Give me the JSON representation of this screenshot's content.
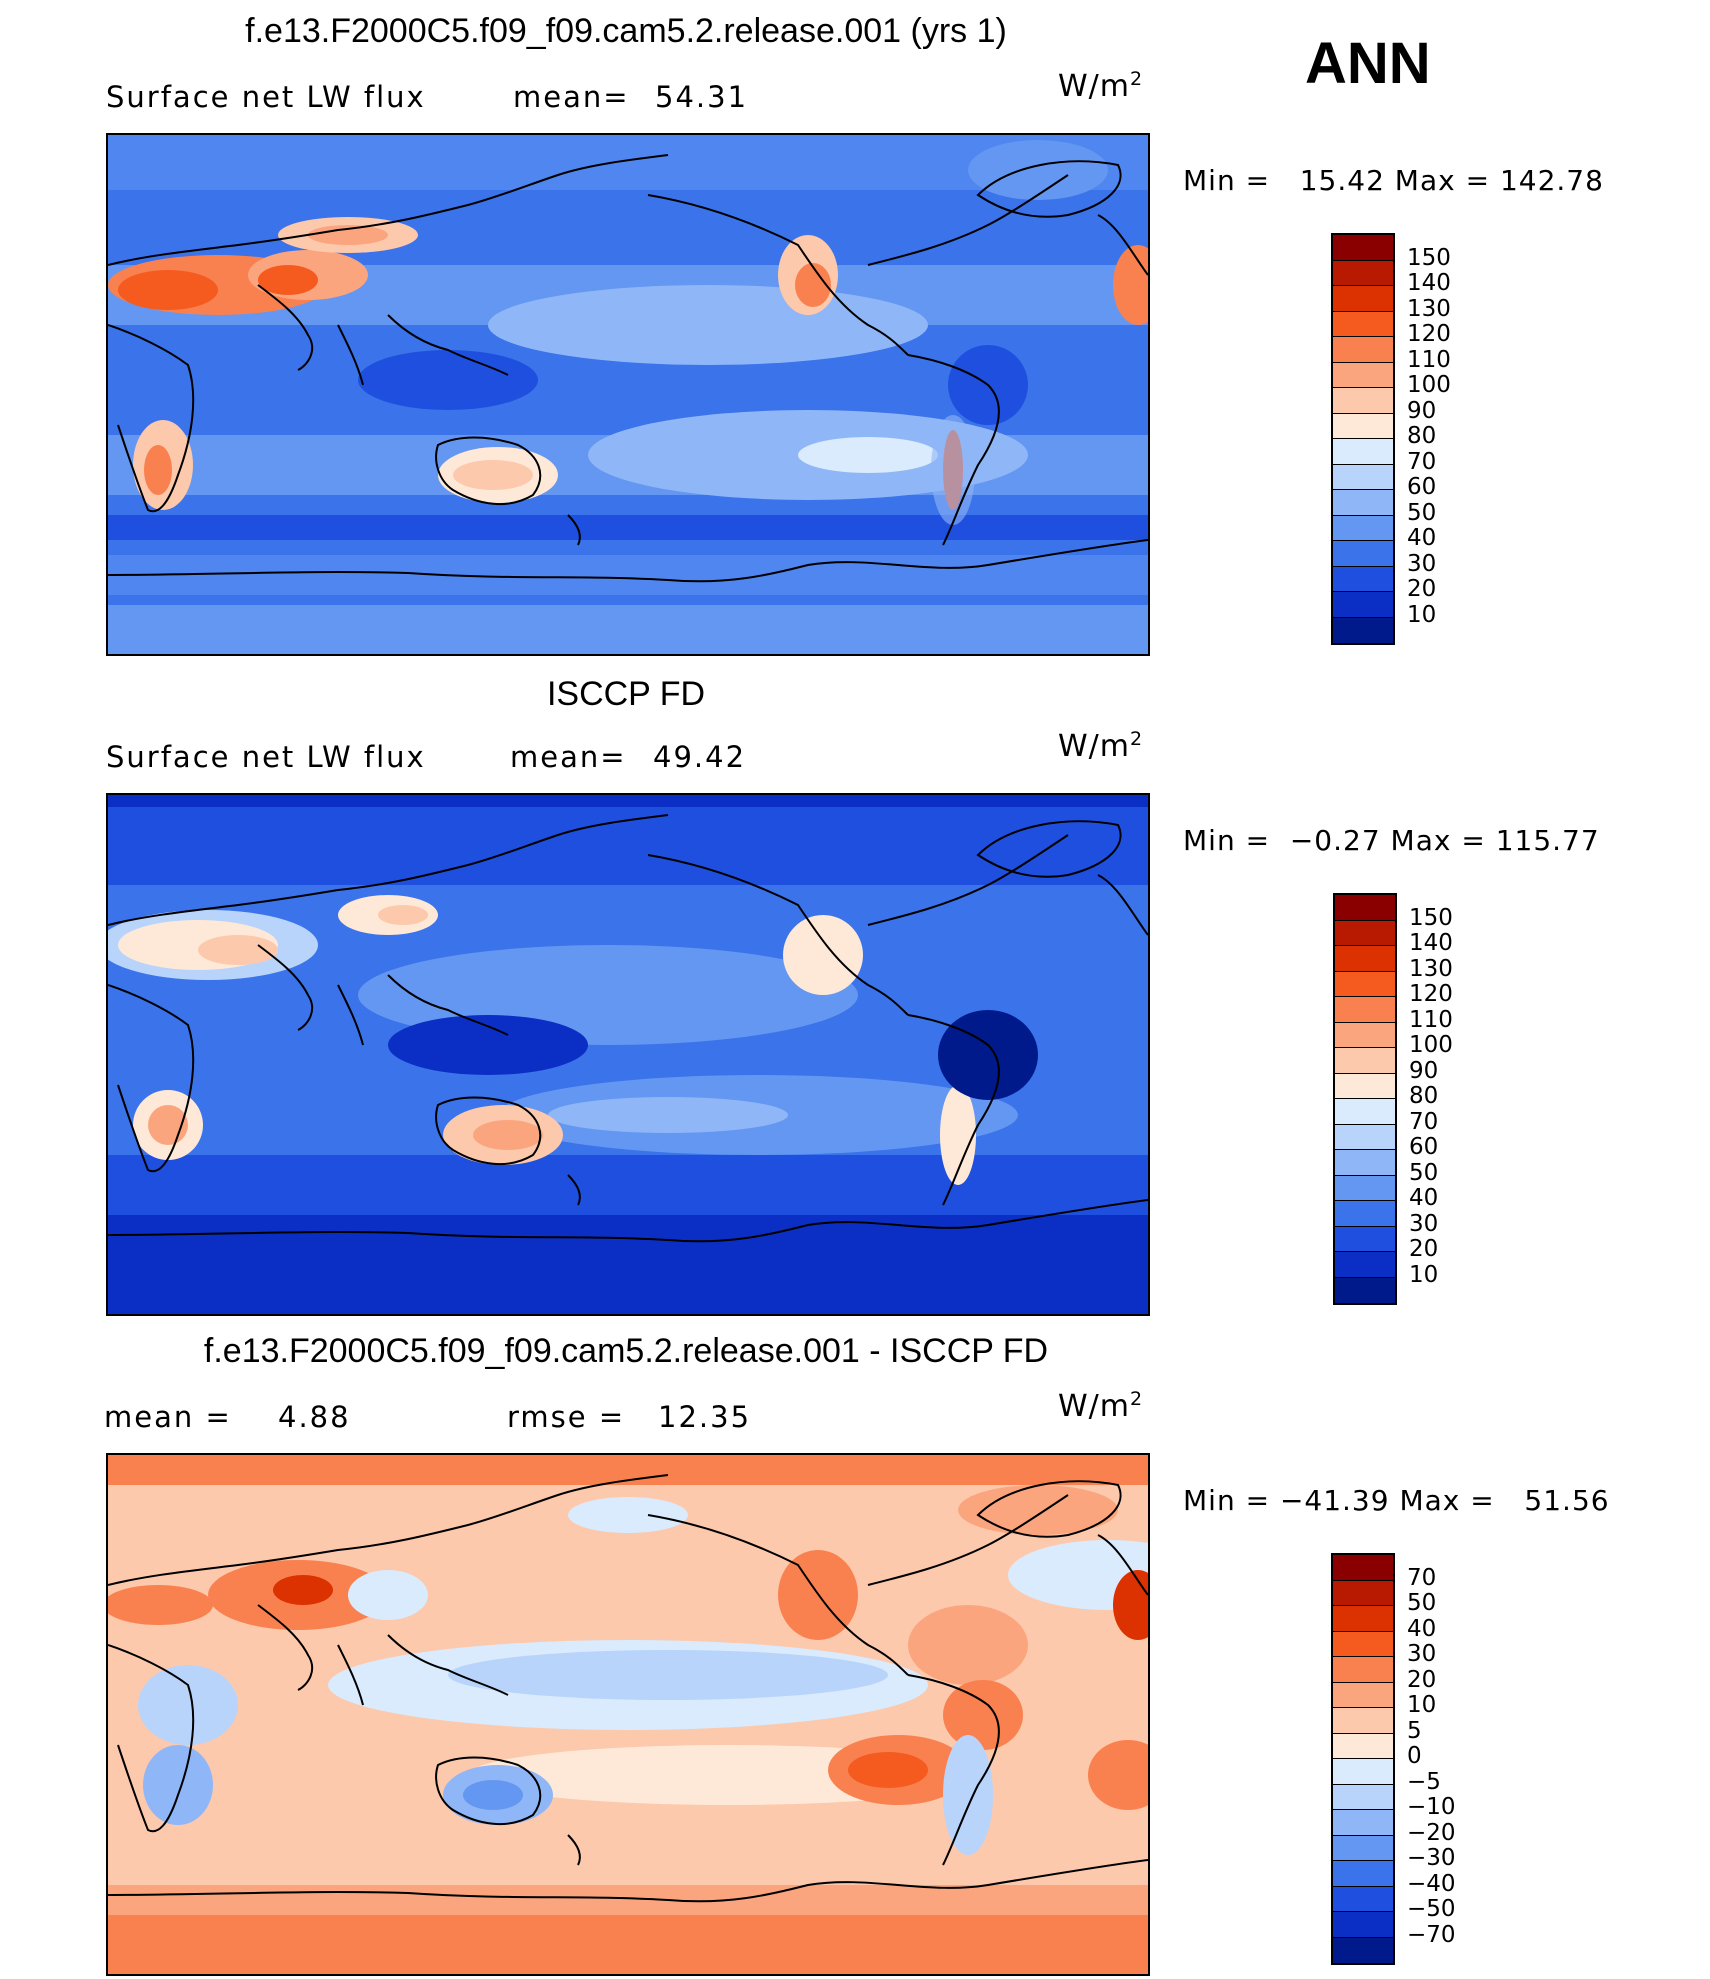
{
  "season": "ANN",
  "units_base": "W/m",
  "units_exp": "2",
  "panels": [
    {
      "title": "f.e13.F2000C5.f09_f09.cam5.2.release.001 (yrs 1)",
      "left_label": "Surface net LW flux",
      "mid_label": "mean=",
      "mid_value": "54.31",
      "minmax": "Min =   15.42 Max = 142.78",
      "colorbar": {
        "labels": [
          "150",
          "140",
          "130",
          "120",
          "110",
          "100",
          "90",
          "80",
          "70",
          "60",
          "50",
          "40",
          "30",
          "20",
          "10"
        ],
        "colors": [
          "#8a0000",
          "#b71a00",
          "#dc3100",
          "#f55a1f",
          "#f98150",
          "#fba57f",
          "#fcc9ad",
          "#fee9d8",
          "#d9ebfc",
          "#b8d4fb",
          "#8fb6f7",
          "#6497f1",
          "#3a73ea",
          "#1f4fde",
          "#0b2fc4",
          "#001a8c"
        ]
      }
    },
    {
      "title": "ISCCP FD",
      "left_label": "Surface net LW flux",
      "mid_label": "mean=",
      "mid_value": "49.42",
      "minmax": "Min =  −0.27 Max = 115.77",
      "colorbar": {
        "labels": [
          "150",
          "140",
          "130",
          "120",
          "110",
          "100",
          "90",
          "80",
          "70",
          "60",
          "50",
          "40",
          "30",
          "20",
          "10"
        ],
        "colors": [
          "#8a0000",
          "#b71a00",
          "#dc3100",
          "#f55a1f",
          "#f98150",
          "#fba57f",
          "#fcc9ad",
          "#fee9d8",
          "#d9ebfc",
          "#b8d4fb",
          "#8fb6f7",
          "#6497f1",
          "#3a73ea",
          "#1f4fde",
          "#0b2fc4",
          "#001a8c"
        ]
      }
    },
    {
      "title": "f.e13.F2000C5.f09_f09.cam5.2.release.001 - ISCCP FD",
      "left_label": "mean =",
      "left_value": "4.88",
      "mid_label": "rmse =",
      "mid_value": "12.35",
      "minmax": "Min = −41.39 Max =   51.56",
      "colorbar": {
        "labels": [
          "70",
          "50",
          "40",
          "30",
          "20",
          "10",
          "5",
          "0",
          "−5",
          "−10",
          "−20",
          "−30",
          "−40",
          "−50",
          "−70"
        ],
        "colors": [
          "#8a0000",
          "#b71a00",
          "#dc3100",
          "#f55a1f",
          "#f98150",
          "#fba57f",
          "#fcc9ad",
          "#fee9d8",
          "#d9ebfc",
          "#b8d4fb",
          "#8fb6f7",
          "#6497f1",
          "#3a73ea",
          "#1f4fde",
          "#0b2fc4",
          "#001a8c"
        ]
      }
    }
  ],
  "chart_data": [
    {
      "type": "heatmap",
      "title": "f.e13.F2000C5.f09_f09.cam5.2.release.001 (yrs 1)",
      "variable": "Surface net LW flux",
      "units": "W/m2",
      "mean": 54.31,
      "min": 15.42,
      "max": 142.78,
      "contour_levels": [
        10,
        20,
        30,
        40,
        50,
        60,
        70,
        80,
        90,
        100,
        110,
        120,
        130,
        140,
        150
      ]
    },
    {
      "type": "heatmap",
      "title": "ISCCP FD",
      "variable": "Surface net LW flux",
      "units": "W/m2",
      "mean": 49.42,
      "min": -0.27,
      "max": 115.77,
      "contour_levels": [
        10,
        20,
        30,
        40,
        50,
        60,
        70,
        80,
        90,
        100,
        110,
        120,
        130,
        140,
        150
      ]
    },
    {
      "type": "heatmap",
      "title": "f.e13.F2000C5.f09_f09.cam5.2.release.001 - ISCCP FD",
      "variable": "Surface net LW flux difference",
      "units": "W/m2",
      "mean": 4.88,
      "rmse": 12.35,
      "min": -41.39,
      "max": 51.56,
      "contour_levels": [
        -70,
        -50,
        -40,
        -30,
        -20,
        -10,
        -5,
        0,
        5,
        10,
        20,
        30,
        40,
        50,
        70
      ]
    }
  ]
}
